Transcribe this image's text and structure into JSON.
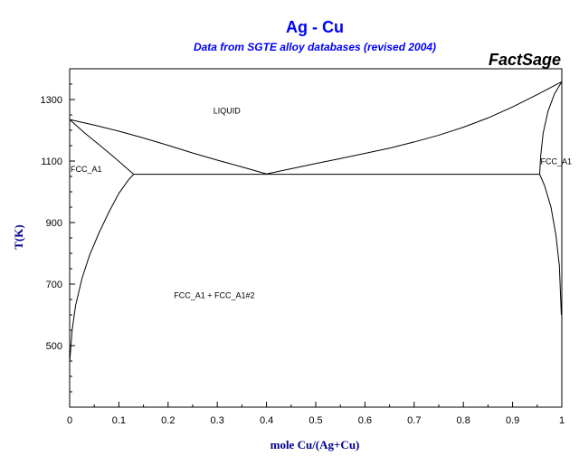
{
  "chart_data": {
    "type": "line",
    "title": "Ag - Cu",
    "subtitle": "Data from SGTE alloy databases (revised 2004)",
    "brand": "FactSage",
    "xlabel": "mole Cu/(Ag+Cu)",
    "ylabel": "T(K)",
    "xlim": [
      0,
      1
    ],
    "ylim": [
      300,
      1400
    ],
    "xticks": [
      0,
      0.1,
      0.2,
      0.3,
      0.4,
      0.5,
      0.6,
      0.7,
      0.8,
      0.9,
      1
    ],
    "xtick_labels": [
      "0",
      "0.1",
      "0.2",
      "0.3",
      "0.4",
      "0.5",
      "0.6",
      "0.7",
      "0.8",
      "0.9",
      "1"
    ],
    "yticks": [
      500,
      700,
      900,
      1100,
      1300
    ],
    "ytick_labels": [
      "500",
      "700",
      "900",
      "1100",
      "1300"
    ],
    "y_minor_step": 50,
    "grid": false,
    "region_labels": [
      {
        "text": "LIQUID",
        "x": 0.29,
        "y": 1255
      },
      {
        "text": "FCC_A1",
        "x": 0.0,
        "y": 1065
      },
      {
        "text": "FCC_A1",
        "x": 0.955,
        "y": 1090
      },
      {
        "text": "FCC_A1 + FCC_A1#2",
        "x": 0.21,
        "y": 655
      }
    ],
    "series": [
      {
        "x": [
          0,
          0.05,
          0.1,
          0.15,
          0.2,
          0.25,
          0.3,
          0.35,
          0.4
        ],
        "y": [
          1235,
          1217,
          1197,
          1175,
          1151,
          1126,
          1103,
          1081,
          1058
        ]
      },
      {
        "x": [
          0.4,
          0.45,
          0.5,
          0.55,
          0.6,
          0.65,
          0.7,
          0.75,
          0.8,
          0.85,
          0.9,
          0.95,
          1.0
        ],
        "y": [
          1058,
          1075,
          1092,
          1108,
          1125,
          1142,
          1162,
          1184,
          1210,
          1240,
          1276,
          1316,
          1358
        ]
      },
      {
        "x": [
          0,
          0.03,
          0.06,
          0.09,
          0.11,
          0.13
        ],
        "y": [
          1235,
          1192,
          1153,
          1113,
          1085,
          1057
        ]
      },
      {
        "x": [
          0.13,
          0.12,
          0.1,
          0.08,
          0.06,
          0.04,
          0.025,
          0.012,
          0.005,
          0.0
        ],
        "y": [
          1057,
          1040,
          995,
          935,
          868,
          792,
          718,
          630,
          550,
          445
        ]
      },
      {
        "x": [
          0.13,
          0.955
        ],
        "y": [
          1057,
          1057
        ]
      },
      {
        "x": [
          1.0,
          0.985,
          0.972,
          0.962,
          0.957,
          0.955
        ],
        "y": [
          1358,
          1318,
          1262,
          1190,
          1115,
          1057
        ]
      },
      {
        "x": [
          0.955,
          0.965,
          0.978,
          0.988,
          0.995,
          0.999
        ],
        "y": [
          1057,
          1020,
          950,
          860,
          760,
          600
        ]
      }
    ]
  }
}
